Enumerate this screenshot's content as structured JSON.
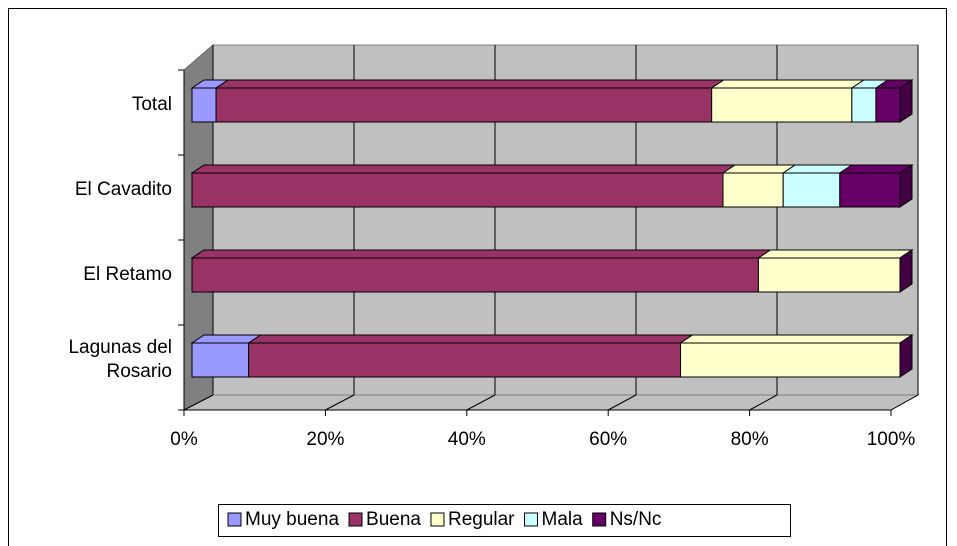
{
  "chart_data": {
    "type": "stacked-bar-3d-horizontal",
    "categories": [
      "Total",
      "El Cavadito",
      "El Retamo",
      "Lagunas del Rosario"
    ],
    "series": [
      {
        "name": "Muy buena",
        "color": "#9999ff",
        "values": [
          3.4,
          0,
          0,
          8
        ]
      },
      {
        "name": "Buena",
        "color": "#993366",
        "values": [
          70,
          75,
          80,
          61
        ]
      },
      {
        "name": "Regular",
        "color": "#ffffcc",
        "values": [
          19.8,
          8.5,
          20,
          31
        ]
      },
      {
        "name": "Mala",
        "color": "#ccffff",
        "values": [
          3.4,
          8,
          0,
          0
        ]
      },
      {
        "name": "Ns/Nc",
        "color": "#660066",
        "values": [
          3.4,
          8.5,
          0,
          0
        ]
      }
    ],
    "xlim": [
      0,
      100
    ],
    "xticks": [
      {
        "value": 0,
        "label": "0%"
      },
      {
        "value": 20,
        "label": "20%"
      },
      {
        "value": 40,
        "label": "40%"
      },
      {
        "value": 60,
        "label": "60%"
      },
      {
        "value": 80,
        "label": "80%"
      },
      {
        "value": 100,
        "label": "100%"
      }
    ],
    "grid": true,
    "legend": "bottom"
  }
}
